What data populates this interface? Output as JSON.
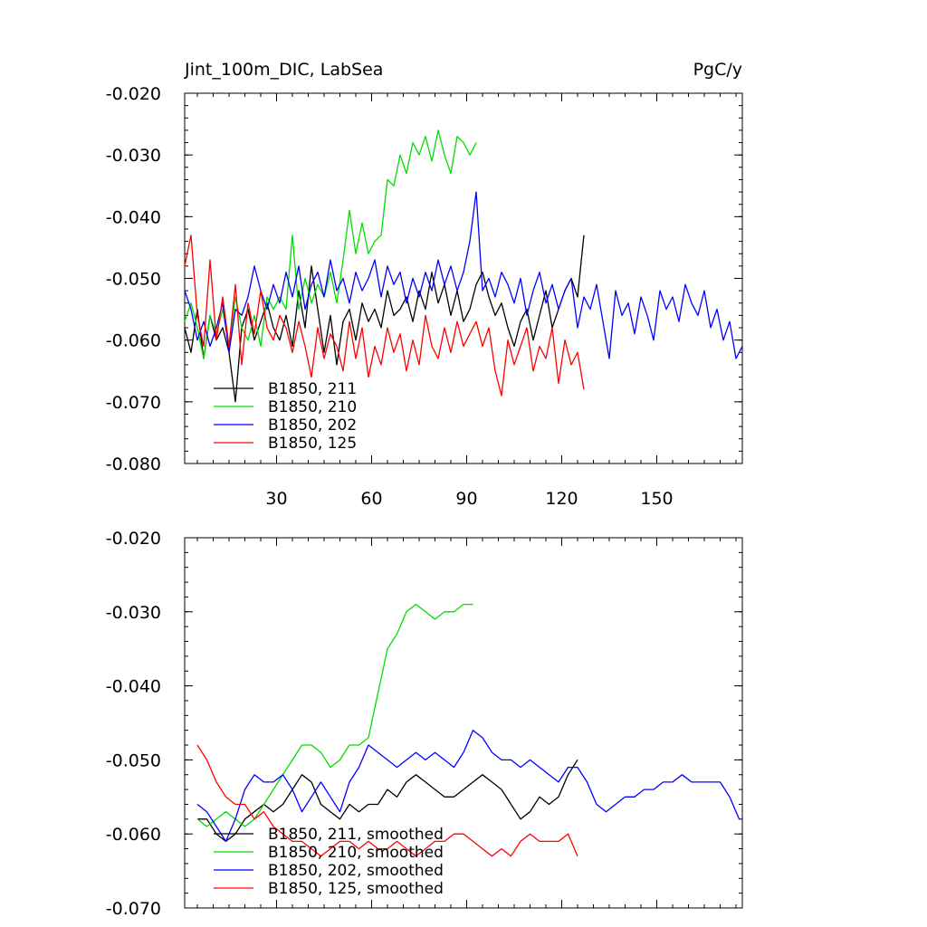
{
  "chart_data": [
    {
      "type": "line",
      "title": "Jint_100m_DIC, LabSea",
      "units": "PgC/y",
      "xlim": [
        1,
        177
      ],
      "ylim": [
        -0.08,
        -0.02
      ],
      "xticks": [
        30,
        60,
        90,
        120,
        150
      ],
      "yticks": [
        -0.02,
        -0.03,
        -0.04,
        -0.05,
        -0.06,
        -0.07,
        -0.08
      ],
      "ytick_labels": [
        "-0.020",
        "-0.030",
        "-0.040",
        "-0.050",
        "-0.060",
        "-0.070",
        "-0.080"
      ],
      "legend_position": "bottom-left",
      "series": [
        {
          "name": "B1850, 211",
          "color": "#000000",
          "x": [
            1,
            3,
            5,
            7,
            9,
            11,
            13,
            15,
            17,
            19,
            21,
            23,
            25,
            27,
            29,
            31,
            33,
            35,
            37,
            39,
            41,
            43,
            45,
            47,
            49,
            51,
            53,
            55,
            57,
            59,
            61,
            63,
            65,
            67,
            69,
            71,
            73,
            75,
            77,
            79,
            81,
            83,
            85,
            87,
            89,
            91,
            93,
            95,
            97,
            99,
            101,
            103,
            105,
            107,
            109,
            111,
            113,
            115,
            117,
            119,
            121,
            123,
            125,
            127
          ],
          "y": [
            -0.058,
            -0.062,
            -0.055,
            -0.063,
            -0.056,
            -0.06,
            -0.058,
            -0.062,
            -0.07,
            -0.058,
            -0.055,
            -0.06,
            -0.057,
            -0.054,
            -0.058,
            -0.06,
            -0.056,
            -0.061,
            -0.052,
            -0.058,
            -0.048,
            -0.055,
            -0.062,
            -0.056,
            -0.064,
            -0.057,
            -0.055,
            -0.06,
            -0.054,
            -0.057,
            -0.055,
            -0.058,
            -0.052,
            -0.056,
            -0.055,
            -0.053,
            -0.057,
            -0.052,
            -0.055,
            -0.049,
            -0.054,
            -0.051,
            -0.056,
            -0.052,
            -0.057,
            -0.055,
            -0.051,
            -0.049,
            -0.053,
            -0.056,
            -0.054,
            -0.058,
            -0.061,
            -0.057,
            -0.055,
            -0.06,
            -0.056,
            -0.052,
            -0.058,
            -0.055,
            -0.052,
            -0.05,
            -0.053,
            -0.043
          ]
        },
        {
          "name": "B1850, 210",
          "color": "#00dd00",
          "x": [
            1,
            3,
            5,
            7,
            9,
            11,
            13,
            15,
            17,
            19,
            21,
            23,
            25,
            27,
            29,
            31,
            33,
            35,
            37,
            39,
            41,
            43,
            45,
            47,
            49,
            51,
            53,
            55,
            57,
            59,
            61,
            63,
            65,
            67,
            69,
            71,
            73,
            75,
            77,
            79,
            81,
            83,
            85,
            87,
            89,
            91,
            93
          ],
          "y": [
            -0.057,
            -0.054,
            -0.058,
            -0.063,
            -0.056,
            -0.059,
            -0.055,
            -0.061,
            -0.053,
            -0.058,
            -0.06,
            -0.056,
            -0.061,
            -0.053,
            -0.055,
            -0.053,
            -0.055,
            -0.043,
            -0.055,
            -0.05,
            -0.054,
            -0.051,
            -0.053,
            -0.049,
            -0.054,
            -0.047,
            -0.039,
            -0.046,
            -0.041,
            -0.046,
            -0.044,
            -0.043,
            -0.034,
            -0.035,
            -0.03,
            -0.033,
            -0.028,
            -0.03,
            -0.027,
            -0.031,
            -0.026,
            -0.03,
            -0.033,
            -0.027,
            -0.028,
            -0.03,
            -0.028
          ]
        },
        {
          "name": "B1850, 202",
          "color": "#0000ff",
          "x": [
            1,
            3,
            5,
            7,
            9,
            11,
            13,
            15,
            17,
            19,
            21,
            23,
            25,
            27,
            29,
            31,
            33,
            35,
            37,
            39,
            41,
            43,
            45,
            47,
            49,
            51,
            53,
            55,
            57,
            59,
            61,
            63,
            65,
            67,
            69,
            71,
            73,
            75,
            77,
            79,
            81,
            83,
            85,
            87,
            89,
            91,
            93,
            95,
            97,
            99,
            101,
            103,
            105,
            107,
            109,
            111,
            113,
            115,
            117,
            119,
            121,
            123,
            125,
            127,
            129,
            131,
            133,
            135,
            137,
            139,
            141,
            143,
            145,
            147,
            149,
            151,
            153,
            155,
            157,
            159,
            161,
            163,
            165,
            167,
            169,
            171,
            173,
            175,
            177
          ],
          "y": [
            -0.052,
            -0.055,
            -0.06,
            -0.057,
            -0.061,
            -0.058,
            -0.054,
            -0.062,
            -0.055,
            -0.056,
            -0.053,
            -0.048,
            -0.052,
            -0.055,
            -0.051,
            -0.054,
            -0.049,
            -0.053,
            -0.048,
            -0.055,
            -0.051,
            -0.049,
            -0.053,
            -0.047,
            -0.052,
            -0.05,
            -0.054,
            -0.049,
            -0.052,
            -0.05,
            -0.047,
            -0.053,
            -0.048,
            -0.051,
            -0.049,
            -0.054,
            -0.05,
            -0.053,
            -0.049,
            -0.052,
            -0.047,
            -0.051,
            -0.048,
            -0.052,
            -0.049,
            -0.044,
            -0.036,
            -0.052,
            -0.05,
            -0.053,
            -0.049,
            -0.051,
            -0.054,
            -0.05,
            -0.056,
            -0.052,
            -0.049,
            -0.054,
            -0.051,
            -0.055,
            -0.052,
            -0.05,
            -0.058,
            -0.053,
            -0.055,
            -0.051,
            -0.057,
            -0.063,
            -0.052,
            -0.056,
            -0.054,
            -0.059,
            -0.053,
            -0.056,
            -0.06,
            -0.052,
            -0.055,
            -0.053,
            -0.057,
            -0.051,
            -0.054,
            -0.056,
            -0.052,
            -0.058,
            -0.055,
            -0.06,
            -0.057,
            -0.063,
            -0.061
          ]
        },
        {
          "name": "B1850, 125",
          "color": "#ff0000",
          "x": [
            1,
            3,
            5,
            7,
            9,
            11,
            13,
            15,
            17,
            19,
            21,
            23,
            25,
            27,
            29,
            31,
            33,
            35,
            37,
            39,
            41,
            43,
            45,
            47,
            49,
            51,
            53,
            55,
            57,
            59,
            61,
            63,
            65,
            67,
            69,
            71,
            73,
            75,
            77,
            79,
            81,
            83,
            85,
            87,
            89,
            91,
            93,
            95,
            97,
            99,
            101,
            103,
            105,
            107,
            109,
            111,
            113,
            115,
            117,
            119,
            121,
            123,
            125,
            127
          ],
          "y": [
            -0.048,
            -0.043,
            -0.056,
            -0.061,
            -0.047,
            -0.06,
            -0.053,
            -0.061,
            -0.051,
            -0.064,
            -0.054,
            -0.059,
            -0.052,
            -0.058,
            -0.06,
            -0.056,
            -0.058,
            -0.062,
            -0.057,
            -0.061,
            -0.066,
            -0.058,
            -0.063,
            -0.059,
            -0.061,
            -0.065,
            -0.057,
            -0.063,
            -0.058,
            -0.066,
            -0.061,
            -0.064,
            -0.058,
            -0.062,
            -0.059,
            -0.065,
            -0.06,
            -0.064,
            -0.056,
            -0.061,
            -0.063,
            -0.058,
            -0.062,
            -0.057,
            -0.061,
            -0.059,
            -0.057,
            -0.061,
            -0.058,
            -0.065,
            -0.069,
            -0.06,
            -0.064,
            -0.061,
            -0.058,
            -0.065,
            -0.061,
            -0.063,
            -0.058,
            -0.067,
            -0.06,
            -0.064,
            -0.062,
            -0.068
          ]
        }
      ]
    },
    {
      "type": "line",
      "title": "",
      "xlim": [
        1,
        177
      ],
      "ylim": [
        -0.07,
        -0.02
      ],
      "xticks": [
        30,
        60,
        90,
        120,
        150
      ],
      "yticks": [
        -0.02,
        -0.03,
        -0.04,
        -0.05,
        -0.06,
        -0.07
      ],
      "ytick_labels": [
        "-0.020",
        "-0.030",
        "-0.040",
        "-0.050",
        "-0.060",
        "-0.070"
      ],
      "legend_position": "bottom-left",
      "series": [
        {
          "name": "B1850, 211, smoothed",
          "color": "#000000",
          "x": [
            5,
            8,
            11,
            14,
            17,
            20,
            23,
            26,
            29,
            32,
            35,
            38,
            41,
            44,
            47,
            50,
            53,
            56,
            59,
            62,
            65,
            68,
            71,
            74,
            77,
            80,
            83,
            86,
            89,
            92,
            95,
            98,
            101,
            104,
            107,
            110,
            113,
            116,
            119,
            122,
            125
          ],
          "y": [
            -0.058,
            -0.058,
            -0.06,
            -0.061,
            -0.06,
            -0.058,
            -0.057,
            -0.056,
            -0.057,
            -0.056,
            -0.054,
            -0.052,
            -0.053,
            -0.056,
            -0.057,
            -0.058,
            -0.056,
            -0.057,
            -0.056,
            -0.056,
            -0.054,
            -0.055,
            -0.053,
            -0.052,
            -0.053,
            -0.054,
            -0.055,
            -0.055,
            -0.054,
            -0.053,
            -0.052,
            -0.053,
            -0.054,
            -0.056,
            -0.058,
            -0.057,
            -0.055,
            -0.056,
            -0.055,
            -0.052,
            -0.05
          ]
        },
        {
          "name": "B1850, 210, smoothed",
          "color": "#00dd00",
          "x": [
            5,
            8,
            11,
            14,
            17,
            20,
            23,
            26,
            29,
            32,
            35,
            38,
            41,
            44,
            47,
            50,
            53,
            56,
            59,
            62,
            65,
            68,
            71,
            74,
            77,
            80,
            83,
            86,
            89,
            92
          ],
          "y": [
            -0.058,
            -0.059,
            -0.058,
            -0.057,
            -0.058,
            -0.059,
            -0.058,
            -0.056,
            -0.054,
            -0.052,
            -0.05,
            -0.048,
            -0.048,
            -0.049,
            -0.051,
            -0.05,
            -0.048,
            -0.048,
            -0.047,
            -0.041,
            -0.035,
            -0.033,
            -0.03,
            -0.029,
            -0.03,
            -0.031,
            -0.03,
            -0.03,
            -0.029,
            -0.029
          ]
        },
        {
          "name": "B1850, 202, smoothed",
          "color": "#0000ff",
          "x": [
            5,
            8,
            11,
            14,
            17,
            20,
            23,
            26,
            29,
            32,
            35,
            38,
            41,
            44,
            47,
            50,
            53,
            56,
            59,
            62,
            65,
            68,
            71,
            74,
            77,
            80,
            83,
            86,
            89,
            92,
            95,
            98,
            101,
            104,
            107,
            110,
            113,
            116,
            119,
            122,
            125,
            128,
            131,
            134,
            137,
            140,
            143,
            146,
            149,
            152,
            155,
            158,
            161,
            164,
            167,
            170,
            173,
            176
          ],
          "y": [
            -0.056,
            -0.057,
            -0.059,
            -0.061,
            -0.058,
            -0.054,
            -0.052,
            -0.053,
            -0.053,
            -0.052,
            -0.054,
            -0.057,
            -0.055,
            -0.053,
            -0.055,
            -0.057,
            -0.053,
            -0.051,
            -0.048,
            -0.049,
            -0.05,
            -0.051,
            -0.05,
            -0.049,
            -0.05,
            -0.049,
            -0.05,
            -0.051,
            -0.049,
            -0.046,
            -0.047,
            -0.049,
            -0.05,
            -0.05,
            -0.051,
            -0.05,
            -0.051,
            -0.052,
            -0.053,
            -0.051,
            -0.051,
            -0.053,
            -0.056,
            -0.057,
            -0.056,
            -0.055,
            -0.055,
            -0.054,
            -0.054,
            -0.053,
            -0.053,
            -0.052,
            -0.053,
            -0.053,
            -0.053,
            -0.053,
            -0.055,
            -0.058
          ]
        },
        {
          "name": "B1850, 125, smoothed",
          "color": "#ff0000",
          "x": [
            5,
            8,
            11,
            14,
            17,
            20,
            23,
            26,
            29,
            32,
            35,
            38,
            41,
            44,
            47,
            50,
            53,
            56,
            59,
            62,
            65,
            68,
            71,
            74,
            77,
            80,
            83,
            86,
            89,
            92,
            95,
            98,
            101,
            104,
            107,
            110,
            113,
            116,
            119,
            122,
            125
          ],
          "y": [
            -0.048,
            -0.05,
            -0.053,
            -0.055,
            -0.056,
            -0.056,
            -0.058,
            -0.057,
            -0.059,
            -0.06,
            -0.061,
            -0.061,
            -0.062,
            -0.063,
            -0.062,
            -0.061,
            -0.061,
            -0.062,
            -0.061,
            -0.062,
            -0.062,
            -0.061,
            -0.062,
            -0.063,
            -0.062,
            -0.061,
            -0.061,
            -0.06,
            -0.06,
            -0.061,
            -0.062,
            -0.063,
            -0.062,
            -0.063,
            -0.061,
            -0.06,
            -0.061,
            -0.061,
            -0.061,
            -0.06,
            -0.063
          ]
        }
      ]
    }
  ]
}
